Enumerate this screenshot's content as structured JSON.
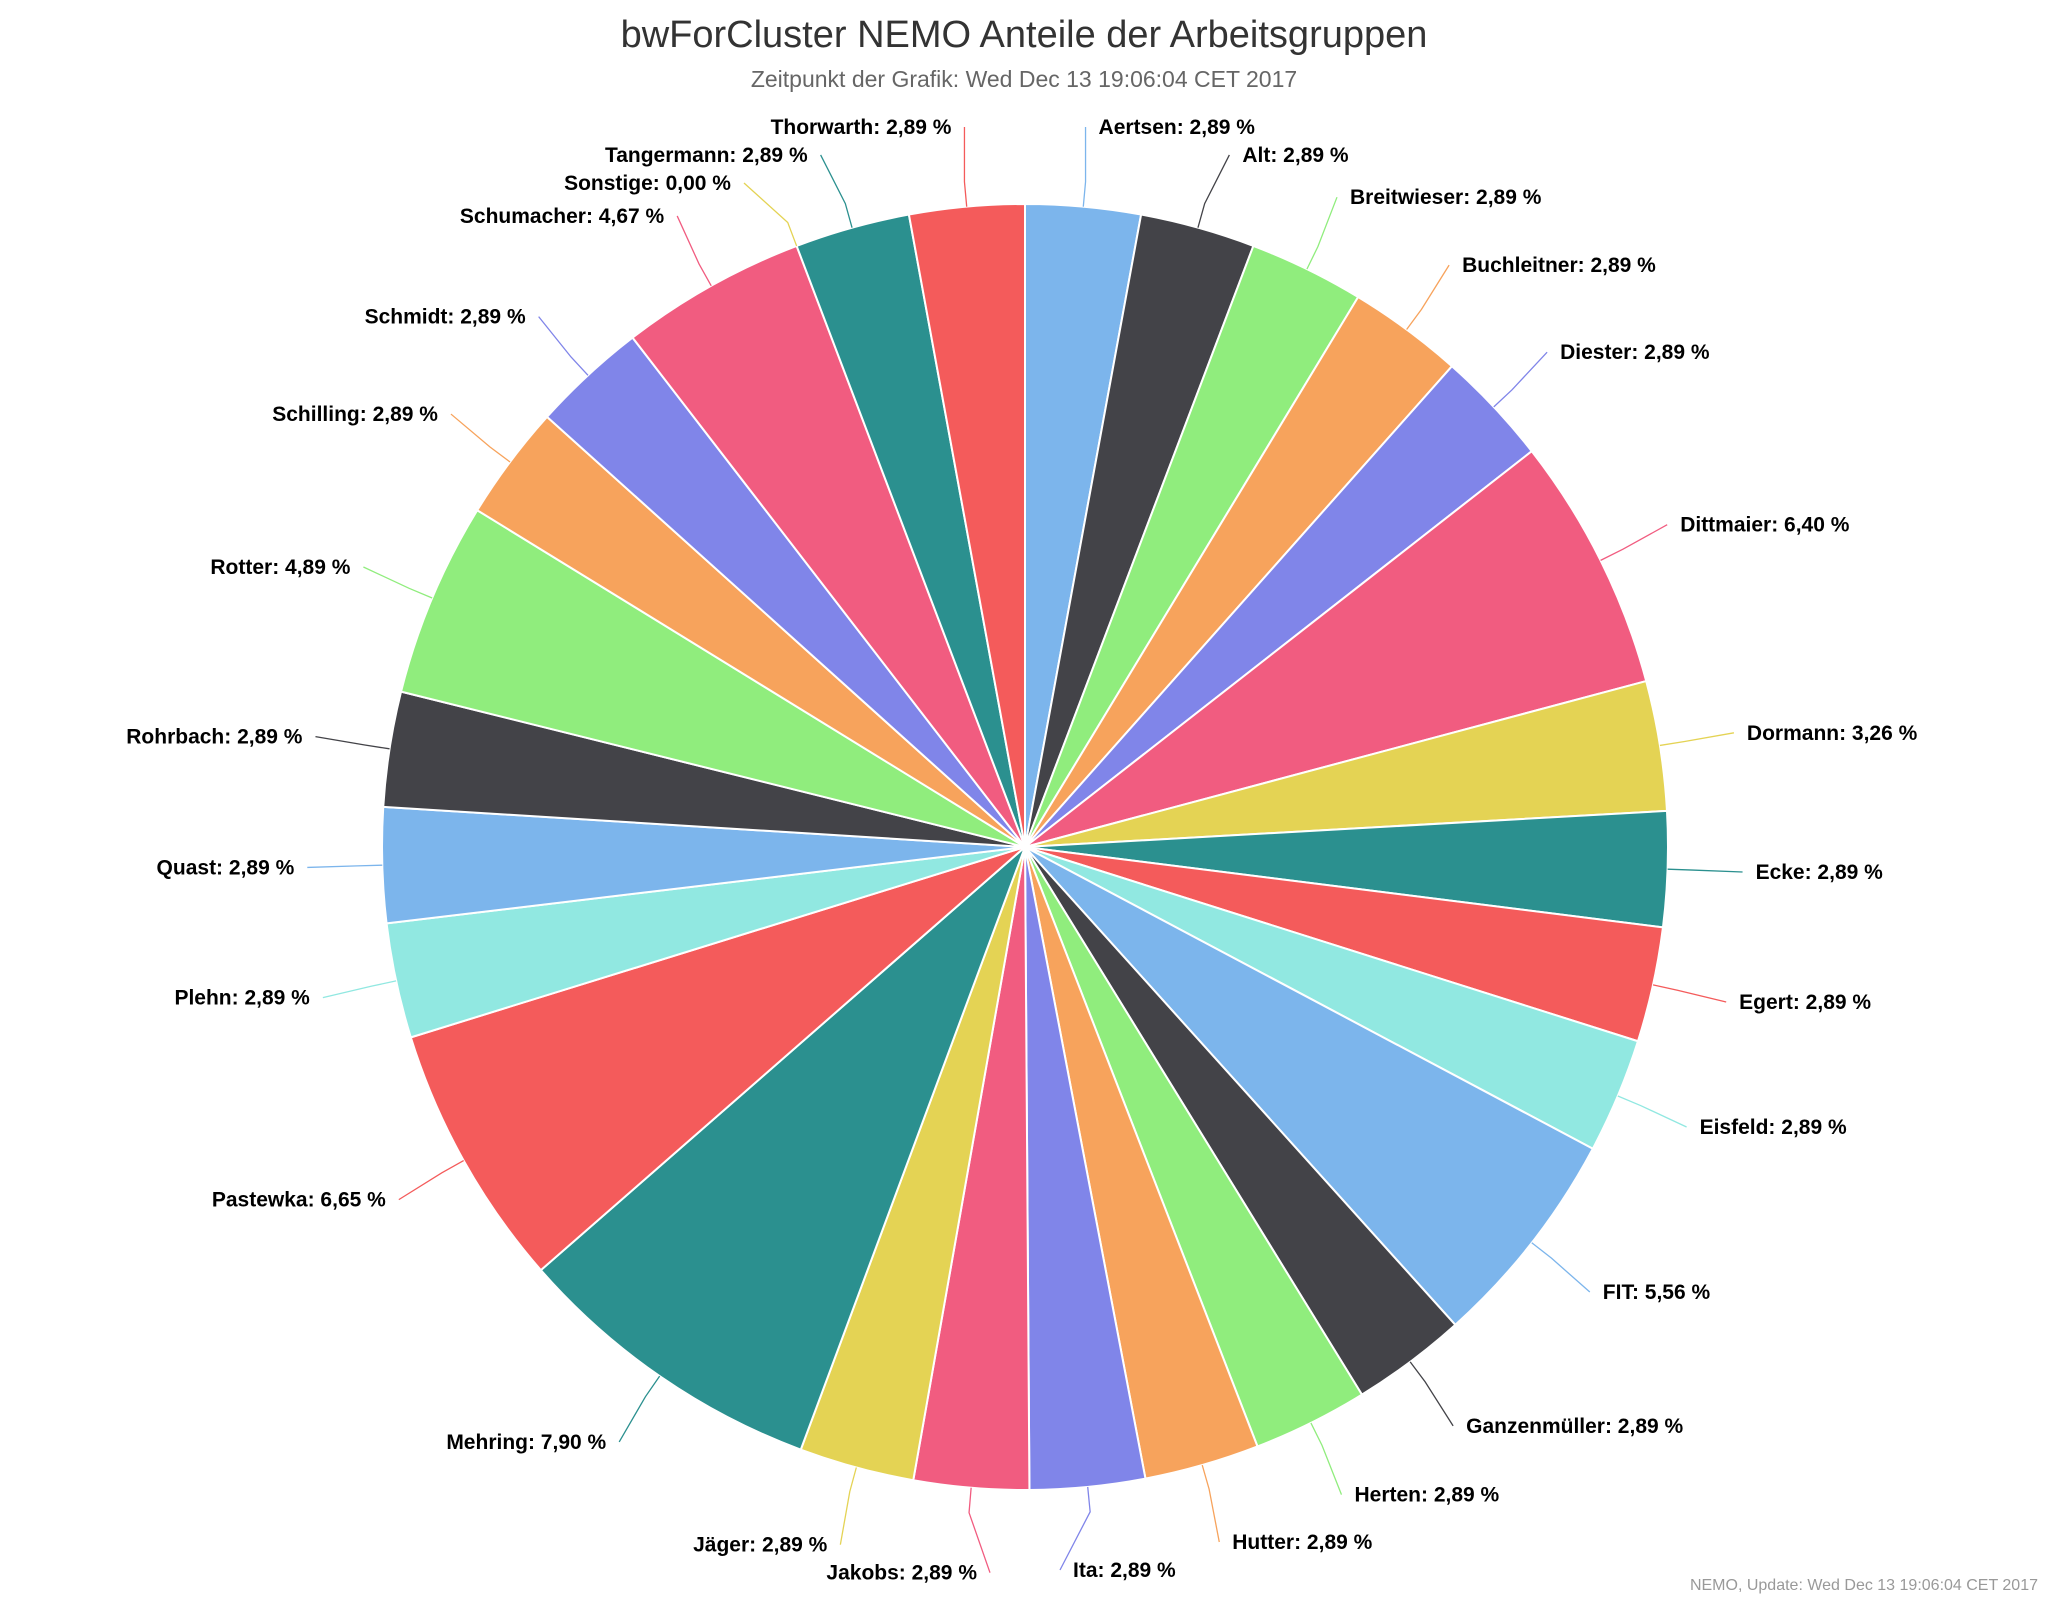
{
  "chart_data": {
    "type": "pie",
    "title": "bwForCluster NEMO Anteile der Arbeitsgruppen",
    "subtitle": "Zeitpunkt der Grafik: Wed Dec 13 19:06:04 CET 2017",
    "credits": "NEMO, Update: Wed Dec 13 19:06:04 CET 2017",
    "slices": [
      {
        "name": "Aertsen",
        "value": 2.89,
        "label": "Aertsen: 2,89 %",
        "color": "#7cb5ec"
      },
      {
        "name": "Alt",
        "value": 2.89,
        "label": "Alt: 2,89 %",
        "color": "#434348"
      },
      {
        "name": "Breitwieser",
        "value": 2.89,
        "label": "Breitwieser: 2,89 %",
        "color": "#90ed7d"
      },
      {
        "name": "Buchleitner",
        "value": 2.89,
        "label": "Buchleitner: 2,89 %",
        "color": "#f7a35c"
      },
      {
        "name": "Diester",
        "value": 2.89,
        "label": "Diester: 2,89 %",
        "color": "#8085e9"
      },
      {
        "name": "Dittmaier",
        "value": 6.4,
        "label": "Dittmaier: 6,40 %",
        "color": "#f15c80"
      },
      {
        "name": "Dormann",
        "value": 3.26,
        "label": "Dormann: 3,26 %",
        "color": "#e4d354"
      },
      {
        "name": "Ecke",
        "value": 2.89,
        "label": "Ecke: 2,89 %",
        "color": "#2b908f"
      },
      {
        "name": "Egert",
        "value": 2.89,
        "label": "Egert: 2,89 %",
        "color": "#f45b5b"
      },
      {
        "name": "Eisfeld",
        "value": 2.89,
        "label": "Eisfeld: 2,89 %",
        "color": "#91e8e1"
      },
      {
        "name": "FIT",
        "value": 5.56,
        "label": "FIT: 5,56 %",
        "color": "#7cb5ec"
      },
      {
        "name": "Ganzenmüller",
        "value": 2.89,
        "label": "Ganzenmüller: 2,89 %",
        "color": "#434348"
      },
      {
        "name": "Herten",
        "value": 2.89,
        "label": "Herten: 2,89 %",
        "color": "#90ed7d"
      },
      {
        "name": "Hutter",
        "value": 2.89,
        "label": "Hutter: 2,89 %",
        "color": "#f7a35c"
      },
      {
        "name": "Ita",
        "value": 2.89,
        "label": "Ita: 2,89 %",
        "color": "#8085e9"
      },
      {
        "name": "Jakobs",
        "value": 2.89,
        "label": "Jakobs: 2,89 %",
        "color": "#f15c80"
      },
      {
        "name": "Jäger",
        "value": 2.89,
        "label": "Jäger: 2,89 %",
        "color": "#e4d354"
      },
      {
        "name": "Mehring",
        "value": 7.9,
        "label": "Mehring: 7,90 %",
        "color": "#2b908f"
      },
      {
        "name": "Pastewka",
        "value": 6.65,
        "label": "Pastewka: 6,65 %",
        "color": "#f45b5b"
      },
      {
        "name": "Plehn",
        "value": 2.89,
        "label": "Plehn: 2,89 %",
        "color": "#91e8e1"
      },
      {
        "name": "Quast",
        "value": 2.89,
        "label": "Quast: 2,89 %",
        "color": "#7cb5ec"
      },
      {
        "name": "Rohrbach",
        "value": 2.89,
        "label": "Rohrbach: 2,89 %",
        "color": "#434348"
      },
      {
        "name": "Rotter",
        "value": 4.89,
        "label": "Rotter: 4,89 %",
        "color": "#90ed7d"
      },
      {
        "name": "Schilling",
        "value": 2.89,
        "label": "Schilling: 2,89 %",
        "color": "#f7a35c"
      },
      {
        "name": "Schmidt",
        "value": 2.89,
        "label": "Schmidt: 2,89 %",
        "color": "#8085e9"
      },
      {
        "name": "Schumacher",
        "value": 4.67,
        "label": "Schumacher: 4,67 %",
        "color": "#f15c80"
      },
      {
        "name": "Sonstige",
        "value": 0.0,
        "label": "Sonstige: 0,00 %",
        "color": "#e4d354"
      },
      {
        "name": "Tangermann",
        "value": 2.89,
        "label": "Tangermann: 2,89 %",
        "color": "#2b908f"
      },
      {
        "name": "Thorwarth",
        "value": 2.89,
        "label": "Thorwarth: 2,89 %",
        "color": "#f45b5b"
      }
    ]
  }
}
